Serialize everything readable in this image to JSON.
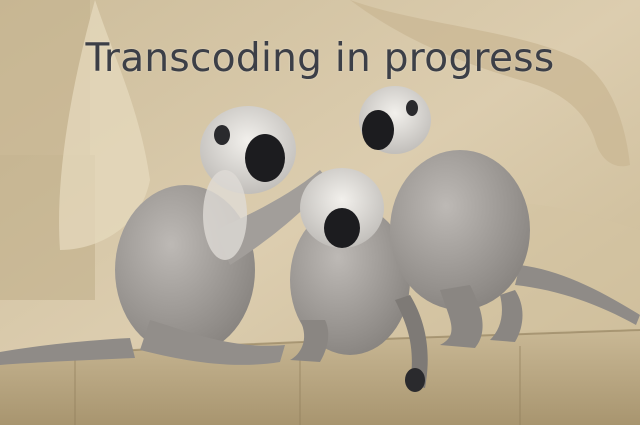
{
  "video": {
    "status_text": "Transcoding in progress",
    "frame_subject": "monkeys-grooming"
  },
  "colors": {
    "overlay_text": "#3c3f47",
    "rock_wall": "#d6c6a4",
    "ledge": "#b8a683",
    "monkey_fur": "#9e9a96",
    "monkey_fur_light": "#d9d6d2",
    "monkey_face": "#1c1c1f"
  }
}
